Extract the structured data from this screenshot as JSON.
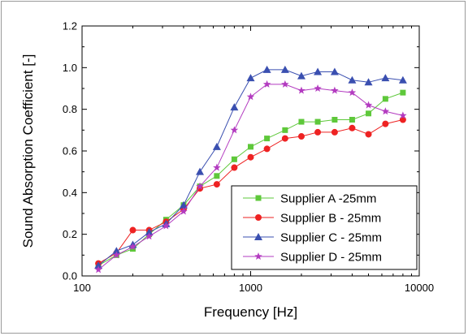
{
  "chart_data": {
    "type": "line",
    "xscale": "log",
    "xlabel": "Frequency [Hz]",
    "ylabel": "Sound Absorption Coefficient [-]",
    "xlim": [
      100,
      10000
    ],
    "ylim": [
      0.0,
      1.2
    ],
    "xticks": [
      100,
      1000,
      10000
    ],
    "xtick_labels": [
      "100",
      "1000",
      "10000"
    ],
    "yticks": [
      0.0,
      0.2,
      0.4,
      0.6,
      0.8,
      1.0,
      1.2
    ],
    "ytick_labels": [
      "0.0",
      "0.2",
      "0.4",
      "0.6",
      "0.8",
      "1.0",
      "1.2"
    ],
    "grid": false,
    "legend_position": "bottom-right",
    "x": [
      125,
      160,
      200,
      250,
      315,
      400,
      500,
      630,
      800,
      1000,
      1250,
      1600,
      2000,
      2500,
      3150,
      4000,
      5000,
      6300,
      8000
    ],
    "series": [
      {
        "name": "Supplier A -25mm",
        "color": "#5ec83a",
        "marker": "square",
        "values": [
          0.05,
          0.1,
          0.13,
          0.2,
          0.27,
          0.34,
          0.43,
          0.48,
          0.56,
          0.62,
          0.66,
          0.7,
          0.74,
          0.74,
          0.75,
          0.75,
          0.78,
          0.85,
          0.88
        ]
      },
      {
        "name": "Supplier B - 25mm",
        "color": "#ee2222",
        "marker": "circle",
        "values": [
          0.06,
          0.11,
          0.22,
          0.22,
          0.26,
          0.32,
          0.42,
          0.44,
          0.52,
          0.57,
          0.61,
          0.66,
          0.67,
          0.69,
          0.69,
          0.71,
          0.68,
          0.73,
          0.75
        ]
      },
      {
        "name": "Supplier C - 25mm",
        "color": "#3a4fb0",
        "marker": "triangle",
        "values": [
          0.05,
          0.12,
          0.15,
          0.21,
          0.25,
          0.34,
          0.5,
          0.62,
          0.81,
          0.95,
          0.99,
          0.99,
          0.96,
          0.98,
          0.98,
          0.94,
          0.93,
          0.95,
          0.94
        ]
      },
      {
        "name": "Supplier D - 25mm",
        "color": "#b33bc0",
        "marker": "star",
        "values": [
          0.03,
          0.1,
          0.14,
          0.19,
          0.24,
          0.31,
          0.43,
          0.52,
          0.7,
          0.86,
          0.92,
          0.92,
          0.89,
          0.9,
          0.89,
          0.88,
          0.82,
          0.79,
          0.77
        ]
      }
    ]
  }
}
